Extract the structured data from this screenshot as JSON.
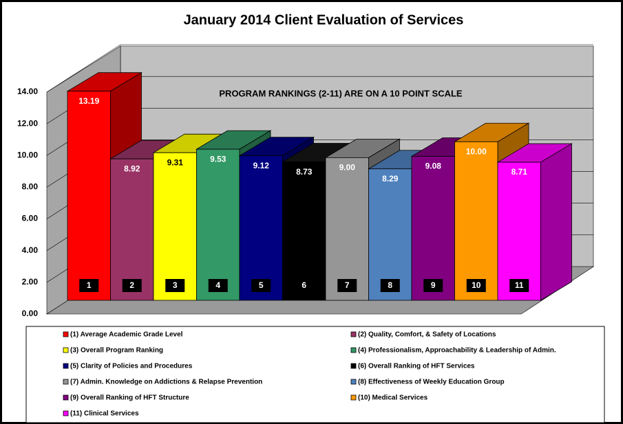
{
  "chart_data": {
    "type": "bar3d",
    "title": "January 2014 Client Evaluation of Services",
    "annotation": "PROGRAM RANKINGS (2-11) ARE ON A 10 POINT SCALE",
    "categories": [
      "1",
      "2",
      "3",
      "4",
      "5",
      "6",
      "7",
      "8",
      "9",
      "10",
      "11"
    ],
    "values": [
      13.19,
      8.92,
      9.31,
      9.53,
      9.12,
      8.73,
      9.0,
      8.29,
      9.08,
      10.0,
      8.71
    ],
    "value_labels": [
      "13.19",
      "8.92",
      "9.31",
      "9.53",
      "9.12",
      "8.73",
      "9.00",
      "8.29",
      "9.08",
      "10.00",
      "8.71"
    ],
    "colors": [
      "#ff0000",
      "#993366",
      "#ffff00",
      "#339966",
      "#000080",
      "#000000",
      "#969696",
      "#4f81bd",
      "#800080",
      "#ff9900",
      "#ff00ff"
    ],
    "legend": [
      "(1) Average Academic Grade Level",
      "(2) Quality, Comfort, & Safety of Locations",
      "(3) Overall Program Ranking",
      "(4) Professionalism, Approachability  & Leadership of Admin.",
      "(5) Clarity of Policies and Procedures",
      "(6) Overall Ranking of HFT Services",
      "(7) Admin. Knowledge on Addictions & Relapse Prevention",
      "(8) Effectiveness of Weekly Education Group",
      "(9) Overall Ranking of HFT Structure",
      "(10) Medical Services",
      "(11) Clinical Services"
    ],
    "ylim": [
      0,
      14
    ],
    "yticks": [
      {
        "value": 0,
        "label": "0.00"
      },
      {
        "value": 2,
        "label": "2.00"
      },
      {
        "value": 4,
        "label": "4.00"
      },
      {
        "value": 6,
        "label": "6.00"
      },
      {
        "value": 8,
        "label": "8.00"
      },
      {
        "value": 10,
        "label": "10.00"
      },
      {
        "value": 12,
        "label": "12.00"
      },
      {
        "value": 14,
        "label": "14.00"
      }
    ],
    "grid": true
  }
}
